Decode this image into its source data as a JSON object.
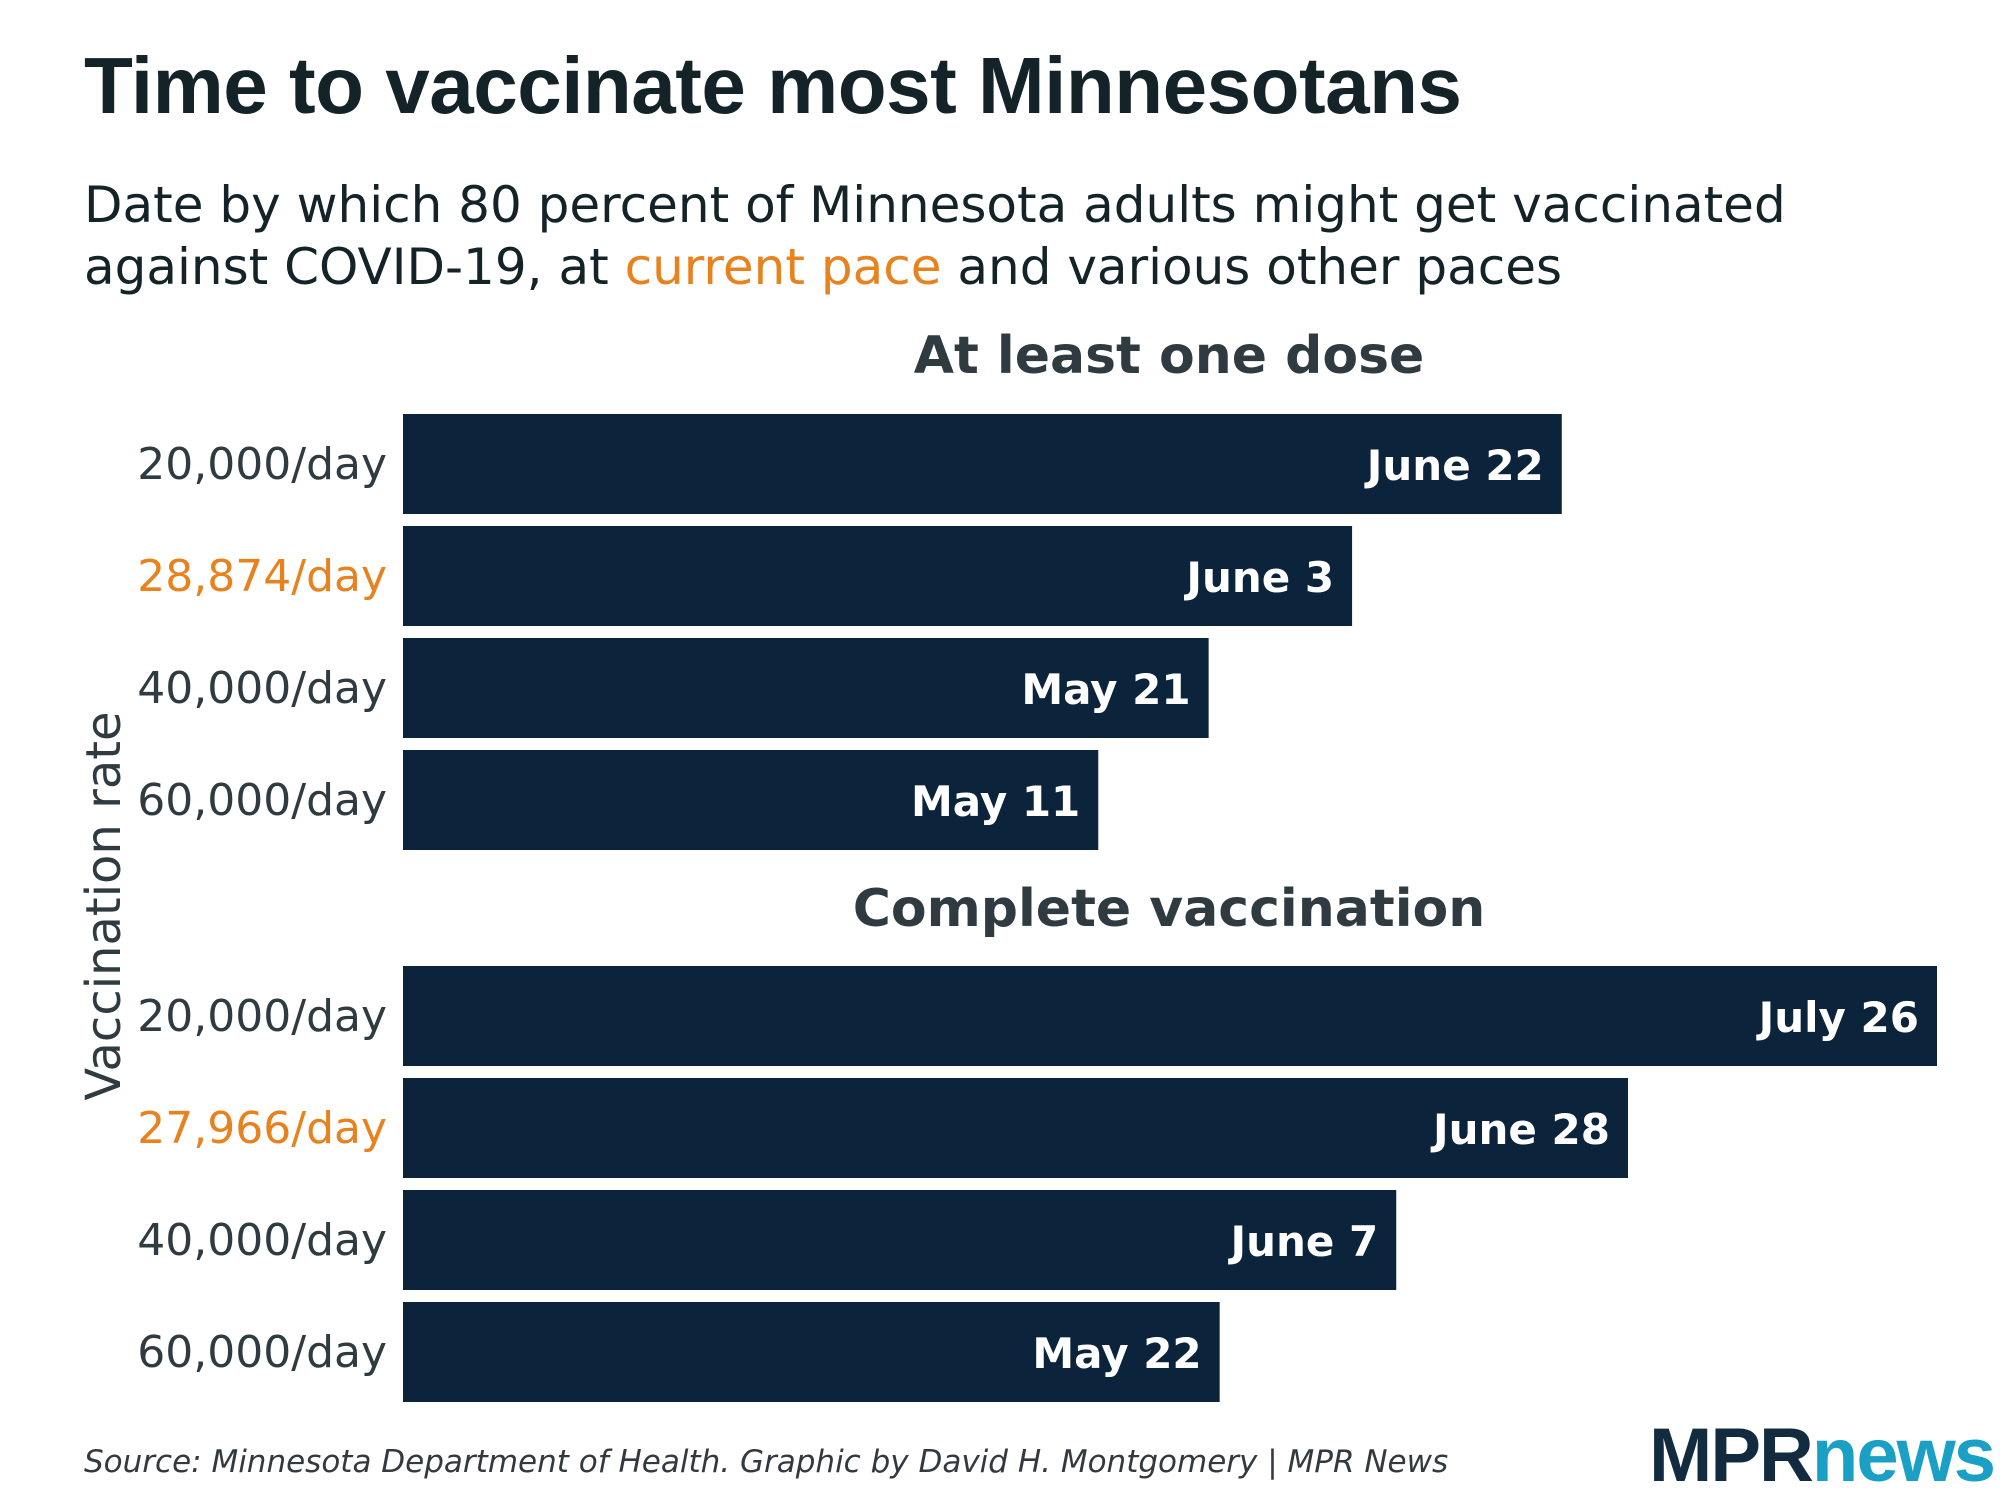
{
  "header": {
    "title": "Time to vaccinate most Minnesotans",
    "subtitle_before": "Date by which 80 percent of Minnesota adults might get vaccinated against COVID-19, at ",
    "subtitle_highlight": "current pace",
    "subtitle_after": " and various other paces"
  },
  "footer": {
    "source": "Source: Minnesota Department of Health. Graphic by David H. Montgomery | MPR News",
    "logo_part1": "MPR",
    "logo_part2": "news"
  },
  "colors": {
    "bar": "#0b233b",
    "bar_label": "#ffffff",
    "highlight": "#e8821e",
    "axis_text": "#2f3b40",
    "panel_title": "#2f3b40",
    "logo_dark": "#132b3f",
    "logo_light": "#1aa0c4"
  },
  "chart_data": {
    "type": "bar",
    "orientation": "horizontal",
    "ylabel": "Vaccination rate",
    "value_unit": "date (2021)",
    "xlim": [
      "2021-03-09",
      "2021-07-26"
    ],
    "panels": [
      {
        "title": "At least one dose",
        "categories": [
          "20,000/day",
          "28,874/day",
          "40,000/day",
          "60,000/day"
        ],
        "values": [
          "2021-06-22",
          "2021-06-03",
          "2021-05-21",
          "2021-05-11"
        ],
        "labels": [
          "June 22",
          "June 3",
          "May 21",
          "May 11"
        ],
        "highlight_index": 1
      },
      {
        "title": "Complete vaccination",
        "categories": [
          "20,000/day",
          "27,966/day",
          "40,000/day",
          "60,000/day"
        ],
        "values": [
          "2021-07-26",
          "2021-06-28",
          "2021-06-07",
          "2021-05-22"
        ],
        "labels": [
          "July 26",
          "June 28",
          "June 7",
          "May 22"
        ],
        "highlight_index": 1
      }
    ]
  }
}
